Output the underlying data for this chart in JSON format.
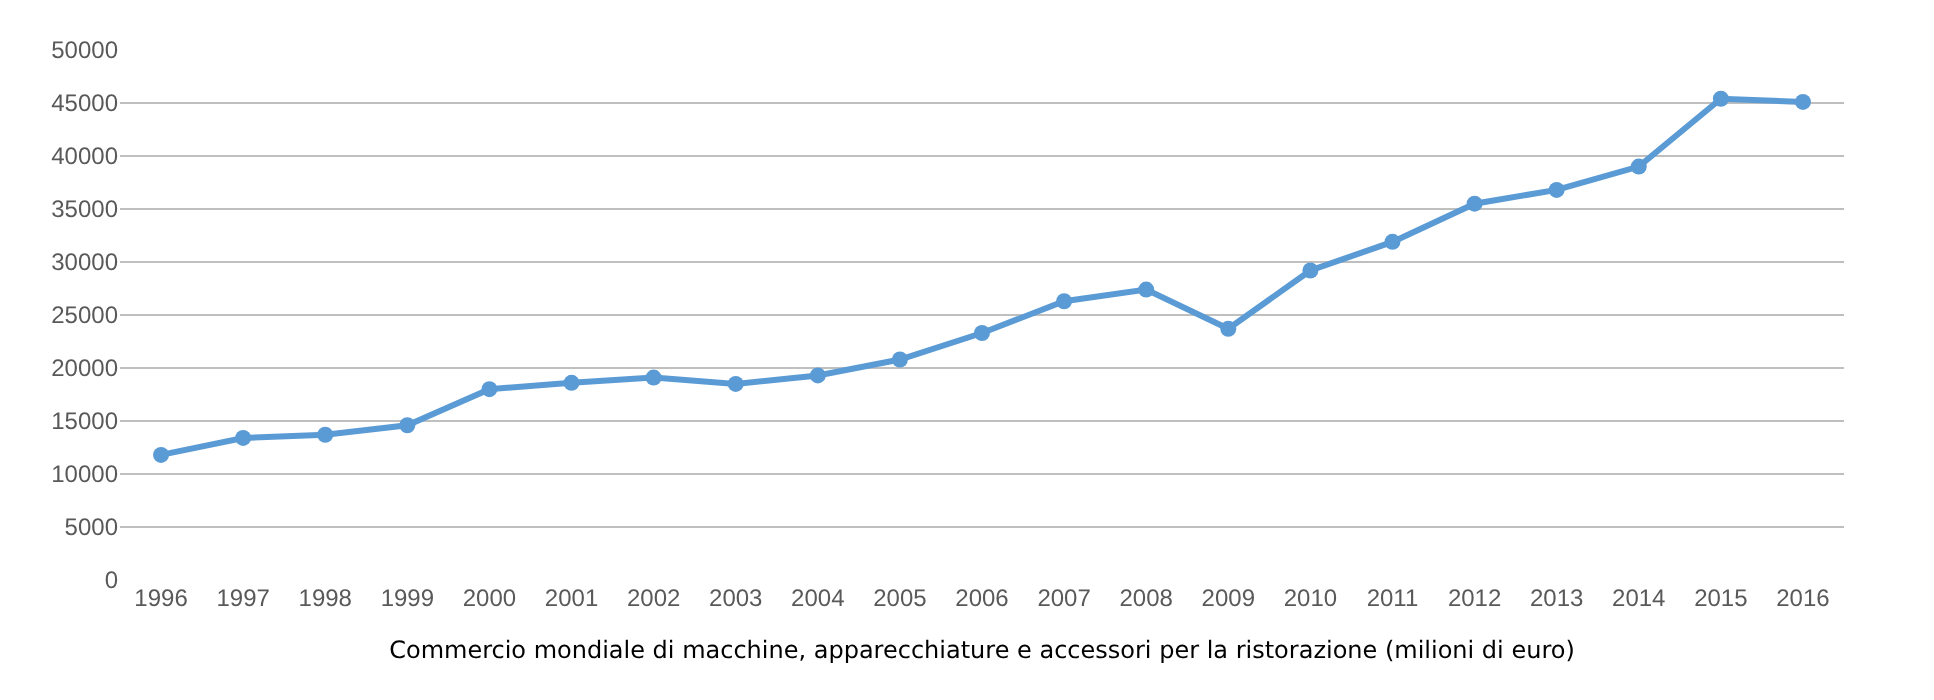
{
  "chart_data": {
    "type": "line",
    "xlabel": "Commercio mondiale di macchine, apparecchiature e accessori per la ristorazione (milioni di euro)",
    "categories": [
      "1996",
      "1997",
      "1998",
      "1999",
      "2000",
      "2001",
      "2002",
      "2003",
      "2004",
      "2005",
      "2006",
      "2007",
      "2008",
      "2009",
      "2010",
      "2011",
      "2012",
      "2013",
      "2014",
      "2015",
      "2016"
    ],
    "series": [
      {
        "color": "#5b9bd5",
        "values": [
          11800,
          13400,
          13700,
          14600,
          18000,
          18600,
          19100,
          18500,
          19300,
          20800,
          23300,
          26300,
          27400,
          23700,
          29200,
          31900,
          35500,
          36800,
          39000,
          45400,
          45100
        ]
      }
    ],
    "ylim": [
      0,
      50000
    ],
    "yticks": [
      0,
      5000,
      10000,
      15000,
      20000,
      25000,
      30000,
      35000,
      40000,
      45000,
      50000
    ],
    "grid": "y",
    "marker": "circle",
    "line_style": "solid",
    "legend": false
  }
}
